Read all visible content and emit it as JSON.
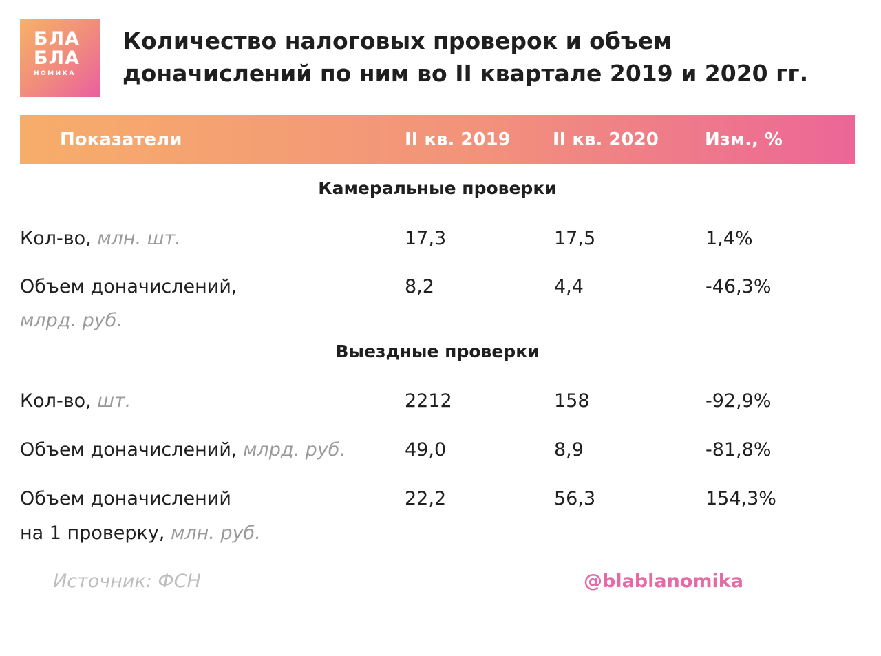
{
  "logo": {
    "line1": "БЛА",
    "line2": "БЛА",
    "line3": "НОМИКА"
  },
  "title": "Количество налоговых проверок и объем доначислений по ним во II квартале 2019 и 2020 гг.",
  "header": {
    "col_label": "Показатели",
    "col_2019": "II кв. 2019",
    "col_2020": "II кв. 2020",
    "col_change": "Изм., %"
  },
  "sections": [
    {
      "title": "Камеральные проверки",
      "rows": [
        {
          "label": "Кол-во,",
          "unit": "млн. шт.",
          "v2019": "17,3",
          "v2020": "17,5",
          "change": "1,4%"
        },
        {
          "label": "Объем доначислений,",
          "unit": "млрд. руб.",
          "v2019": "8,2",
          "v2020": "4,4",
          "change": "-46,3%"
        }
      ]
    },
    {
      "title": "Выездные проверки",
      "rows": [
        {
          "label": "Кол-во,",
          "unit": "шт.",
          "v2019": "2212",
          "v2020": "158",
          "change": "-92,9%"
        },
        {
          "label": "Объем доначислений,",
          "unit": "млрд. руб.",
          "v2019": "49,0",
          "v2020": "8,9",
          "change": "-81,8%"
        },
        {
          "label": "Объем доначислений",
          "label2": "на 1 проверку,",
          "unit": "млн. руб.",
          "v2019": "22,2",
          "v2020": "56,3",
          "change": "154,3%"
        }
      ]
    }
  ],
  "footer": {
    "source": "Источник: ФСН",
    "handle": "@blablanomika"
  },
  "colors": {
    "accent_start": "#f7ad6a",
    "accent_end": "#ec6697",
    "handle": "#e56aa6"
  }
}
